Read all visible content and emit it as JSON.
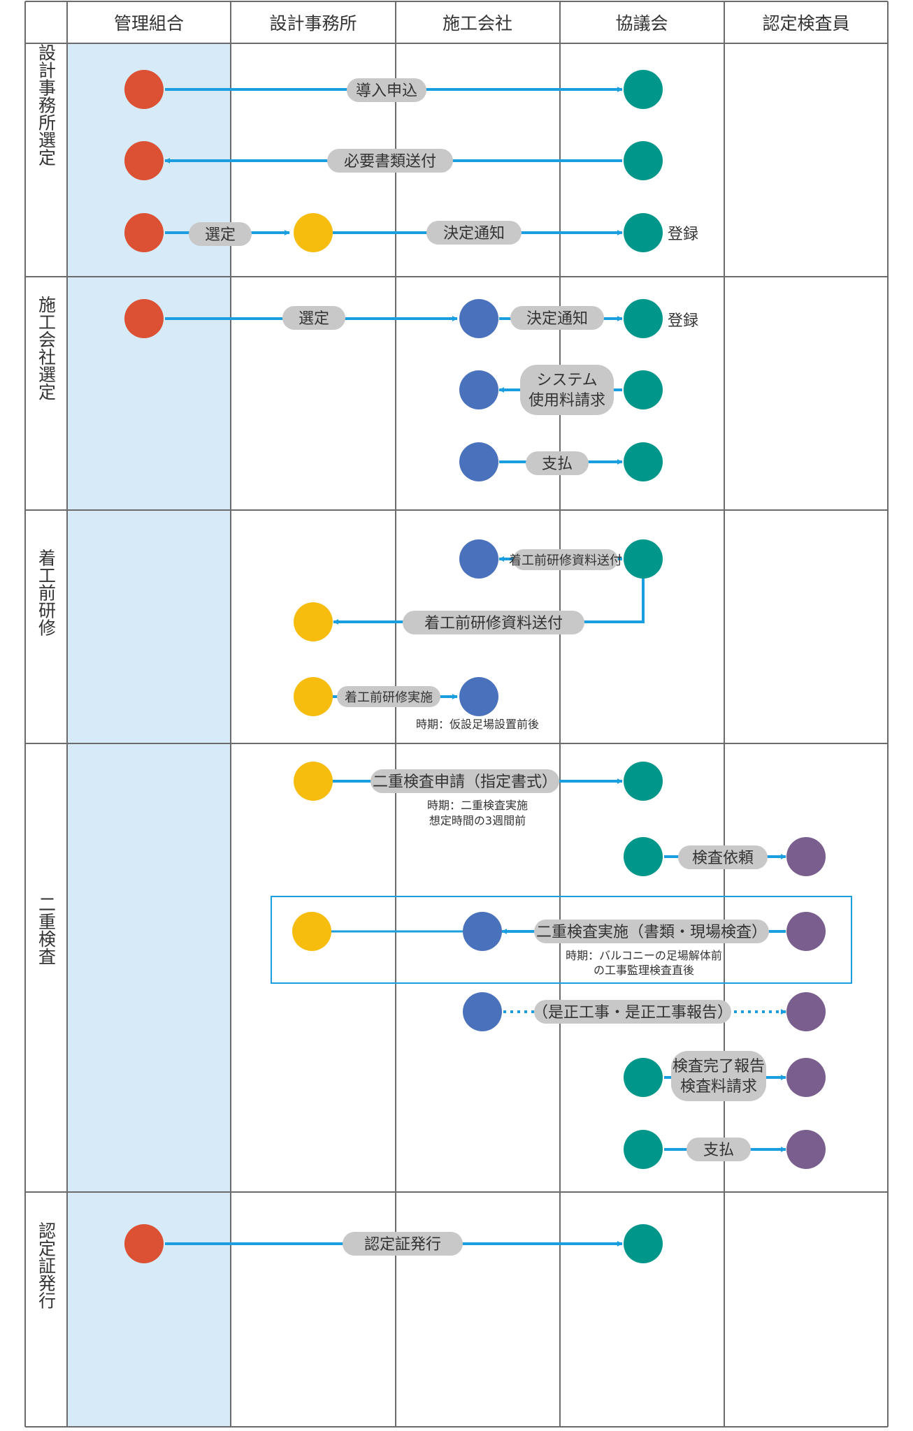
{
  "columns": [
    "管理組合",
    "設計事務所",
    "施工会社",
    "協議会",
    "認定検査員"
  ],
  "sections": [
    "設計事務所選定",
    "施工会社選定",
    "着工前研修",
    "二重検査",
    "認定証発行"
  ],
  "colors": {
    "kanri": "#dc5034",
    "sekkei": "#f6bd0f",
    "sekou": "#4a72bc",
    "kyogikai": "#00968a",
    "kensain": "#7a5f8e",
    "arrow": "#1a9ee0",
    "pill": "#c8c8c8",
    "highlight_column": "#d6eaf8",
    "grid": "#6b6b6b"
  },
  "labels": {
    "dounyu": "導入申込",
    "hitsuyou": "必要書類送付",
    "sentei1": "選定",
    "kettei1": "決定通知",
    "touroku1": "登録",
    "sentei2": "選定",
    "kettei2": "決定通知",
    "touroku2": "登録",
    "system_1": "システム",
    "system_2": "使用料請求",
    "shiharai1": "支払",
    "kenshu_small": "着工前研修資料送付",
    "kenshu_big": "着工前研修資料送付",
    "kenshu_jisshi": "着工前研修実施",
    "note_kenshu": "時期：仮設足場設置前後",
    "shinsei": "二重検査申請（指定書式）",
    "note_shinsei_1": "時期：二重検査実施",
    "note_shinsei_2": "想定時間の3週間前",
    "irai": "検査依頼",
    "jisshi": "二重検査実施（書類・現場検査）",
    "note_jisshi_1": "時期：バルコニーの足場解体前",
    "note_jisshi_2": "の工事監理検査直後",
    "zesei": "（是正工事・是正工事報告）",
    "kanryo_1": "検査完了報告",
    "kanryo_2": "検査料請求",
    "shiharai2": "支払",
    "hakko": "認定証発行"
  }
}
